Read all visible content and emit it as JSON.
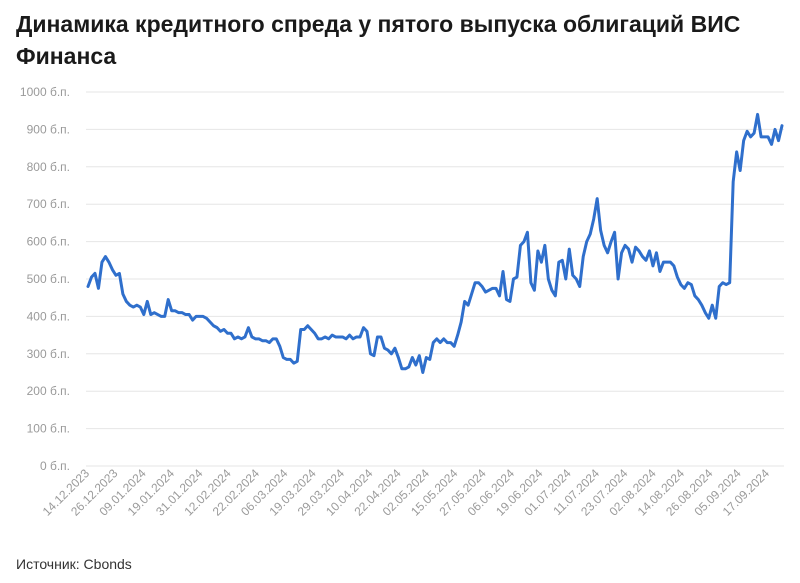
{
  "title": "Динамика кредитного спреда у пятого выпуска облигаций ВИС Финанса",
  "source": "Источник: Cbonds",
  "colors": {
    "line": "#2f6fcc",
    "grid": "#e6e6e6",
    "axis": "#9a9a9a"
  },
  "chart_data": {
    "type": "line",
    "title": "Динамика кредитного спреда у пятого выпуска облигаций ВИС Финанса",
    "xlabel": "",
    "ylabel": "",
    "ylim": [
      0,
      1000
    ],
    "y_ticks": [
      "0 б.п.",
      "100 б.п.",
      "200 б.п.",
      "300 б.п.",
      "400 б.п.",
      "500 б.п.",
      "600 б.п.",
      "700 б.п.",
      "800 б.п.",
      "900 б.п.",
      "1000 б.п."
    ],
    "x_ticks": [
      "14.12.2023",
      "26.12.2023",
      "09.01.2024",
      "19.01.2024",
      "31.01.2024",
      "12.02.2024",
      "22.02.2024",
      "06.03.2024",
      "19.03.2024",
      "29.03.2024",
      "10.04.2024",
      "22.04.2024",
      "02.05.2024",
      "15.05.2024",
      "27.05.2024",
      "06.06.2024",
      "19.06.2024",
      "01.07.2024",
      "11.07.2024",
      "23.07.2024",
      "02.08.2024",
      "14.08.2024",
      "26.08.2024",
      "05.09.2024",
      "17.09.2024"
    ],
    "grid": true,
    "legend": "none",
    "series": [
      {
        "values": [
          480,
          505,
          515,
          475,
          545,
          560,
          545,
          525,
          510,
          515,
          460,
          440,
          430,
          425,
          430,
          425,
          405,
          440,
          405,
          410,
          405,
          400,
          400,
          445,
          415,
          415,
          410,
          410,
          405,
          405,
          390,
          400,
          400,
          400,
          395,
          385,
          375,
          370,
          360,
          365,
          355,
          355,
          340,
          345,
          340,
          345,
          370,
          345,
          340,
          340,
          335,
          335,
          330,
          340,
          340,
          320,
          290,
          285,
          285,
          275,
          280,
          365,
          365,
          375,
          365,
          355,
          340,
          340,
          345,
          340,
          350,
          345,
          345,
          345,
          340,
          350,
          340,
          345,
          345,
          370,
          360,
          300,
          295,
          345,
          345,
          315,
          310,
          300,
          315,
          290,
          260,
          260,
          265,
          290,
          270,
          295,
          250,
          290,
          285,
          330,
          340,
          330,
          340,
          330,
          330,
          320,
          350,
          385,
          440,
          430,
          460,
          490,
          490,
          480,
          465,
          470,
          475,
          475,
          455,
          520,
          445,
          440,
          500,
          505,
          590,
          600,
          625,
          490,
          470,
          575,
          545,
          590,
          500,
          470,
          455,
          545,
          550,
          500,
          580,
          510,
          500,
          480,
          560,
          600,
          620,
          660,
          715,
          630,
          590,
          570,
          600,
          625,
          500,
          570,
          590,
          580,
          545,
          585,
          575,
          560,
          550,
          575,
          535,
          570,
          520,
          545,
          545,
          545,
          535,
          505,
          485,
          475,
          490,
          485,
          455,
          445,
          430,
          410,
          395,
          430,
          395,
          480,
          490,
          485,
          490,
          760,
          840,
          790,
          870,
          895,
          880,
          890,
          940,
          880,
          880,
          880,
          860,
          900,
          870,
          910
        ]
      }
    ]
  }
}
